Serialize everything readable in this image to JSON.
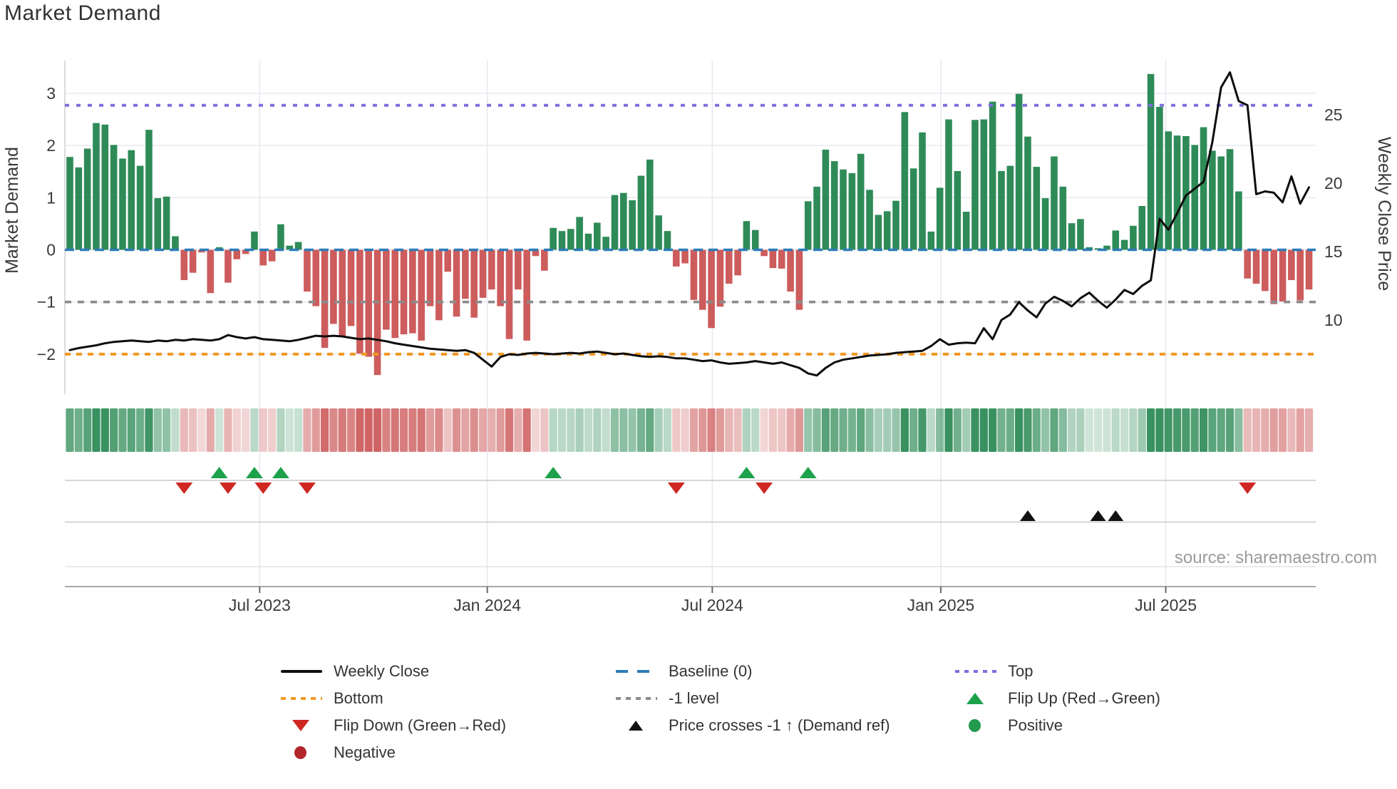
{
  "title": "Market Demand",
  "source": "source: sharemaestro.com",
  "axes": {
    "left_label": "Market Demand",
    "right_label": "Weekly Close Price",
    "left_ticks": [
      {
        "label": "3",
        "v": 3
      },
      {
        "label": "2",
        "v": 2
      },
      {
        "label": "1",
        "v": 1
      },
      {
        "label": "0",
        "v": 0
      },
      {
        "label": "−1",
        "v": -1
      },
      {
        "label": "−2",
        "v": -2
      }
    ],
    "right_ticks": [
      {
        "label": "10",
        "v": 10
      },
      {
        "label": "15",
        "v": 15
      },
      {
        "label": "20",
        "v": 20
      },
      {
        "label": "25",
        "v": 25
      }
    ],
    "x_ticks": [
      {
        "label": "Jul 2023",
        "week": 21.6
      },
      {
        "label": "Jan 2024",
        "week": 47.5
      },
      {
        "label": "Jul 2024",
        "week": 73.1
      },
      {
        "label": "Jan 2025",
        "week": 99.1
      },
      {
        "label": "Jul 2025",
        "week": 124.7
      }
    ]
  },
  "chart_data": {
    "type": "combo: weekly bar (demand, left axis) + line (close price, right axis) + heatmap strip + event marker rows",
    "x": {
      "unit": "week index",
      "n_weeks": 142,
      "approx_range": "Feb 2023 - Oct 2025",
      "tick_labels": [
        "Jul 2023",
        "Jan 2024",
        "Jul 2024",
        "Jan 2025",
        "Jul 2025"
      ]
    },
    "left_axis": {
      "label": "Market Demand",
      "ticks": [
        3,
        2,
        1,
        0,
        -1,
        -2
      ],
      "range": [
        -2.77,
        3.63
      ]
    },
    "right_axis": {
      "label": "Weekly Close Price",
      "ticks": [
        10,
        15,
        20,
        25
      ],
      "range": [
        4.5,
        29.0
      ]
    },
    "grid": true,
    "legend_position": "bottom, 3 columns",
    "series": [
      {
        "name": "Market Demand",
        "type": "bar",
        "axis": "left",
        "positive_color": "#2e8b57",
        "negative_color": "#cd5c5c",
        "values": [
          1.78,
          1.58,
          1.94,
          2.43,
          2.4,
          2.01,
          1.75,
          1.91,
          1.61,
          2.3,
          0.99,
          1.02,
          0.26,
          -0.58,
          -0.44,
          -0.05,
          -0.83,
          0.05,
          -0.63,
          -0.18,
          -0.08,
          0.35,
          -0.3,
          -0.22,
          0.49,
          0.08,
          0.15,
          -0.8,
          -1.08,
          -1.88,
          -1.42,
          -1.67,
          -1.46,
          -1.99,
          -2.05,
          -2.4,
          -1.53,
          -1.69,
          -1.62,
          -1.6,
          -1.74,
          -1.08,
          -1.35,
          -0.42,
          -1.28,
          -0.94,
          -1.3,
          -0.92,
          -0.76,
          -1.08,
          -1.71,
          -0.76,
          -1.74,
          -0.12,
          -0.4,
          0.42,
          0.36,
          0.4,
          0.63,
          0.31,
          0.52,
          0.25,
          1.05,
          1.09,
          0.95,
          1.42,
          1.73,
          0.66,
          0.36,
          -0.32,
          -0.26,
          -0.96,
          -1.15,
          -1.5,
          -1.09,
          -0.65,
          -0.49,
          0.55,
          0.38,
          -0.12,
          -0.35,
          -0.36,
          -0.8,
          -1.15,
          0.93,
          1.21,
          1.92,
          1.7,
          1.54,
          1.47,
          1.84,
          1.15,
          0.67,
          0.74,
          0.94,
          2.64,
          1.56,
          2.25,
          0.35,
          1.19,
          2.5,
          1.51,
          0.73,
          2.49,
          2.5,
          2.84,
          1.51,
          1.61,
          2.99,
          2.17,
          1.59,
          0.99,
          1.79,
          1.21,
          0.51,
          0.59,
          0.05,
          0.03,
          0.08,
          0.37,
          0.19,
          0.46,
          0.84,
          3.37,
          2.74,
          2.27,
          2.19,
          2.18,
          2.01,
          2.35,
          1.9,
          1.79,
          1.93,
          1.12,
          -0.55,
          -0.65,
          -0.79,
          -1.04,
          -0.99,
          -0.58,
          -0.97,
          -0.76
        ]
      },
      {
        "name": "Weekly Close",
        "type": "line",
        "axis": "right",
        "color": "#0d0d0d",
        "values": [
          7.8,
          7.95,
          8.05,
          8.15,
          8.3,
          8.4,
          8.45,
          8.5,
          8.45,
          8.4,
          8.5,
          8.45,
          8.55,
          8.5,
          8.6,
          8.55,
          8.5,
          8.6,
          8.9,
          8.75,
          8.65,
          8.75,
          8.6,
          8.55,
          8.5,
          8.45,
          8.55,
          8.7,
          8.85,
          8.8,
          8.85,
          8.8,
          8.7,
          8.6,
          8.65,
          8.55,
          8.45,
          8.3,
          8.2,
          8.1,
          8.0,
          7.9,
          7.85,
          7.8,
          7.75,
          7.8,
          7.6,
          7.1,
          6.6,
          7.3,
          7.5,
          7.45,
          7.55,
          7.6,
          7.55,
          7.5,
          7.55,
          7.6,
          7.55,
          7.65,
          7.7,
          7.6,
          7.5,
          7.55,
          7.45,
          7.35,
          7.3,
          7.35,
          7.3,
          7.2,
          7.2,
          7.1,
          7.0,
          7.05,
          6.9,
          6.8,
          6.85,
          6.9,
          7.0,
          6.9,
          6.8,
          6.9,
          6.7,
          6.5,
          6.1,
          5.95,
          6.5,
          6.9,
          7.1,
          7.2,
          7.3,
          7.4,
          7.45,
          7.5,
          7.6,
          7.65,
          7.7,
          7.75,
          8.1,
          8.6,
          8.2,
          8.3,
          8.35,
          8.3,
          9.4,
          8.6,
          10.0,
          10.4,
          11.3,
          10.7,
          10.2,
          11.2,
          11.7,
          11.4,
          11.0,
          11.6,
          12.0,
          11.4,
          10.9,
          11.5,
          12.2,
          11.9,
          12.5,
          12.9,
          17.4,
          16.6,
          17.8,
          19.1,
          19.6,
          20.1,
          23.0,
          27.0,
          28.1,
          26.0,
          25.7,
          19.2,
          19.4,
          19.3,
          18.6,
          20.5,
          18.5,
          19.7
        ]
      }
    ],
    "reference_lines": {
      "top": 2.77,
      "baseline": 0,
      "minus1_level": -1,
      "bottom": -2
    },
    "heatmap_strip": {
      "meaning": "weekly demand value as green (positive) / red (negative) intensity",
      "mirrors_series": "Market Demand"
    },
    "markers": {
      "flip_up_weeks": [
        17,
        21,
        24,
        55,
        77,
        84
      ],
      "flip_down_weeks": [
        13,
        18,
        22,
        27,
        69,
        79,
        134
      ],
      "price_cross_weeks": [
        109,
        117,
        119
      ]
    }
  },
  "legend": {
    "col1": [
      {
        "label": "Weekly Close",
        "kind": "black line"
      },
      {
        "label": "Bottom",
        "kind": "orange dotted line"
      },
      {
        "label": "Flip Down (Green→Red)",
        "kind": "red down triangle"
      },
      {
        "label": "Negative",
        "kind": "dark red circle"
      }
    ],
    "col2": [
      {
        "label": "Baseline (0)",
        "kind": "blue dashed line"
      },
      {
        "label": "-1 level",
        "kind": "gray dotted line"
      },
      {
        "label": "Price crosses -1 ↑ (Demand ref)",
        "kind": "black up triangle"
      }
    ],
    "col3": [
      {
        "label": "Top",
        "kind": "purple dotted line"
      },
      {
        "label": "Flip Up (Red→Green)",
        "kind": "green up triangle"
      },
      {
        "label": "Positive",
        "kind": "green circle"
      }
    ]
  },
  "colors": {
    "bar_positive": "#2e8b57",
    "bar_negative": "#cd5c5c",
    "price_line": "#0d0d0d",
    "baseline": "#2d7cb8",
    "top_line": "#7d6ede",
    "bottom_line": "#f09820",
    "minus1_line": "#8b8b8b",
    "flip_up": "#1da24b",
    "flip_down": "#cf2722",
    "price_cross": "#111111",
    "positive_dot": "#23994d",
    "negative_dot": "#b2262c",
    "grid": "#e8e8f0",
    "panel_line": "#c9c9c9",
    "axis_line": "#a8a8a8",
    "text": "#3a3a3a",
    "muted_text": "#9b9b9b"
  }
}
